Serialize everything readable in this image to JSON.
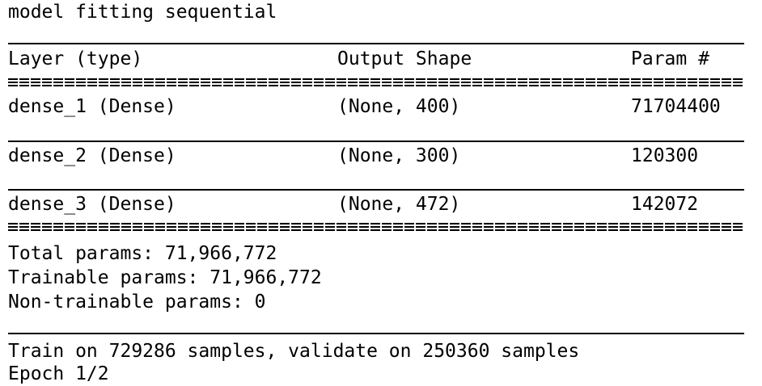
{
  "title_line": "model fitting sequential",
  "summary": {
    "headers": {
      "layer": "Layer (type)",
      "output_shape": "Output Shape",
      "param": "Param #"
    },
    "rows": [
      {
        "layer": "dense_1 (Dense)",
        "output_shape": "(None, 400)",
        "param": "71704400"
      },
      {
        "layer": "dense_2 (Dense)",
        "output_shape": "(None, 300)",
        "param": "120300"
      },
      {
        "layer": "dense_3 (Dense)",
        "output_shape": "(None, 472)",
        "param": "142072"
      }
    ],
    "totals": {
      "total": "Total params: 71,966,772",
      "trainable": "Trainable params: 71,966,772",
      "non_trainable": "Non-trainable params: 0"
    }
  },
  "train_line": "Train on 729286 samples, validate on 250360 samples",
  "epoch_line": "Epoch 1/2"
}
